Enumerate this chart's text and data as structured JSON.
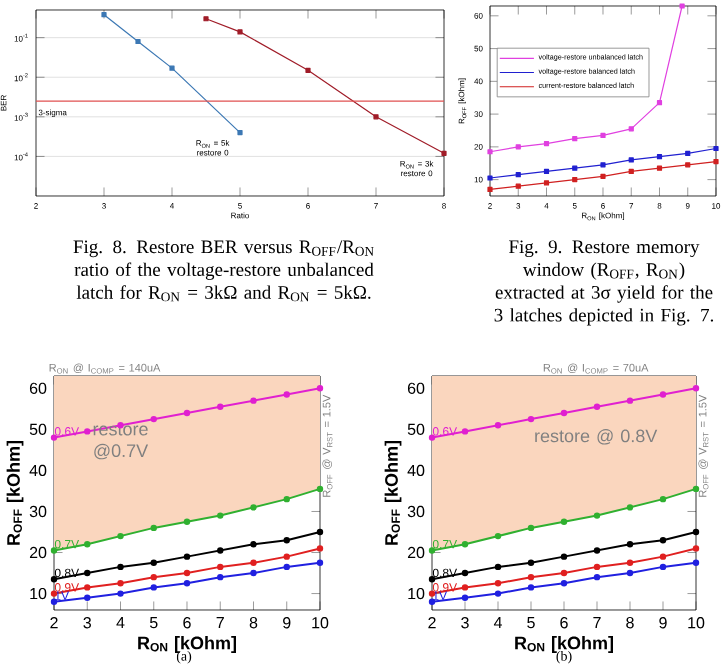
{
  "chart_data": [
    {
      "type": "line",
      "log": "y",
      "xlabel": "Ratio",
      "ylabel": "BER",
      "xlim": [
        2,
        8
      ],
      "xticks": [
        2,
        3,
        4,
        5,
        6,
        7,
        8
      ],
      "ylim": [
        1e-05,
        0.5
      ],
      "yticks": [
        {
          "value": 0.1,
          "label": "10$^{-1}$"
        },
        {
          "value": 0.01,
          "label": "10$^{-2}$"
        },
        {
          "value": 0.001,
          "label": "10$^{-3}$"
        },
        {
          "value": 0.0001,
          "label": "10$^{-4}$"
        }
      ],
      "grid": "y",
      "marker": "square",
      "series": [
        {
          "name": "R$_{ON}$ = 5k restore 0",
          "color": "#3c78b4",
          "x": [
            3,
            3.5,
            4,
            5
          ],
          "values": [
            0.38,
            0.08,
            0.017,
            0.0004
          ]
        },
        {
          "name": "R$_{ON}$ = 3k restore 0",
          "color": "#a01c28",
          "x": [
            4.5,
            5,
            6,
            7,
            8
          ],
          "values": [
            0.3,
            0.14,
            0.015,
            0.001,
            0.00012
          ]
        }
      ],
      "ref_lines": [
        {
          "axis": "y",
          "value": 0.0025,
          "label": "3-sigma",
          "color": "#e05050"
        }
      ],
      "annotations": [
        "Fig. 8. Restore BER versus R$_{OFF}$/R$_{ON}$ ratio of the voltage-restore unbalanced latch for R$_{ON}$ = 3kΩ and R$_{ON}$ = 5kΩ."
      ]
    },
    {
      "type": "line",
      "xlabel": "R$_{ON}$ [kOhm]",
      "ylabel": "R$_{OFF}$ [kOhm]",
      "xlim": [
        2,
        10
      ],
      "xticks": [
        2,
        3,
        4,
        5,
        6,
        7,
        8,
        9,
        10
      ],
      "ylim": [
        5,
        63
      ],
      "yticks": [
        10,
        20,
        30,
        40,
        50,
        60
      ],
      "marker": "square",
      "legend": "top left",
      "series": [
        {
          "name": "voltage-restore unbalanced latch",
          "color": "#e040e0",
          "x": [
            2,
            3,
            4,
            5,
            6,
            7,
            8,
            8.8
          ],
          "values": [
            18.5,
            20,
            21,
            22.5,
            23.5,
            25.5,
            33.5,
            63
          ]
        },
        {
          "name": "voltage-restore balanced latch",
          "color": "#2020d0",
          "x": [
            2,
            3,
            4,
            5,
            6,
            7,
            8,
            9,
            10
          ],
          "values": [
            10.5,
            11.5,
            12.5,
            13.5,
            14.5,
            16,
            17,
            18,
            19.5
          ]
        },
        {
          "name": "current-restore balanced latch",
          "color": "#d02020",
          "x": [
            2,
            3,
            4,
            5,
            6,
            7,
            8,
            9,
            10
          ],
          "values": [
            7,
            8,
            9,
            10,
            11,
            12.5,
            13.5,
            14.5,
            15.5
          ]
        }
      ],
      "annotations": [
        "Fig. 9. Restore memory window (R$_{OFF}$, R$_{ON}$) extracted at 3σ yield for the 3 latches depicted in Fig. 7."
      ]
    },
    {
      "type": "line",
      "xlabel": "R$_{ON}$ [kOhm]",
      "ylabel": "R$_{OFF}$ [kOhm]",
      "xlim": [
        2,
        10
      ],
      "xticks": [
        2,
        3,
        4,
        5,
        6,
        7,
        8,
        9,
        10
      ],
      "ylim": [
        6,
        63
      ],
      "yticks": [
        10,
        20,
        30,
        40,
        50,
        60
      ],
      "marker": "circle",
      "x": [
        2,
        3,
        4,
        5,
        6,
        7,
        8,
        9,
        10
      ],
      "series": [
        {
          "name": "0.6V",
          "color": "#e020d0",
          "values": [
            48,
            49.5,
            51,
            52.5,
            54,
            55.5,
            57,
            58.5,
            60
          ]
        },
        {
          "name": "0.7V",
          "color": "#30b030",
          "values": [
            20.5,
            22,
            24,
            26,
            27.5,
            29,
            31,
            33,
            35.5
          ],
          "lower": [
            20.5,
            22,
            24,
            26,
            27.5,
            29,
            31,
            33,
            35.5
          ],
          "upper": [
            63,
            63,
            63,
            63,
            63,
            63,
            63,
            63,
            63
          ]
        },
        {
          "name": "0.8V",
          "color": "#000000",
          "values": [
            13.5,
            15,
            16.5,
            17.5,
            19,
            20.5,
            22,
            23,
            25
          ]
        },
        {
          "name": "0.9V",
          "color": "#e02020",
          "values": [
            10,
            11.5,
            12.5,
            14,
            15,
            16.5,
            17.5,
            19,
            21
          ]
        },
        {
          "name": "1V",
          "color": "#2020e0",
          "values": [
            8,
            9,
            10,
            11.5,
            12.5,
            14,
            15,
            16.5,
            17.5
          ]
        }
      ],
      "annotations": [
        "restore @0.7V",
        "R$_{ON}$ @ I$_{COMP}$ = 140uA",
        "R$_{OFF}$ @ V$_{RST}$ = 1.5V",
        "(a)"
      ]
    },
    {
      "type": "line",
      "xlabel": "R$_{ON}$ [kOhm]",
      "ylabel": "R$_{OFF}$ [kOhm]",
      "xlim": [
        2,
        10
      ],
      "xticks": [
        2,
        3,
        4,
        5,
        6,
        7,
        8,
        9,
        10
      ],
      "ylim": [
        6,
        63
      ],
      "yticks": [
        10,
        20,
        30,
        40,
        50,
        60
      ],
      "marker": "circle",
      "x": [
        2,
        3,
        4,
        5,
        6,
        7,
        8,
        9,
        10
      ],
      "series": [
        {
          "name": "0.6V",
          "color": "#e020d0",
          "values": [
            48,
            49.5,
            51,
            52.5,
            54,
            55.5,
            57,
            58.5,
            60
          ]
        },
        {
          "name": "0.7V",
          "color": "#30b030",
          "values": [
            20.5,
            22,
            24,
            26,
            27.5,
            29,
            31,
            33,
            35.5
          ],
          "lower": [
            20.5,
            22,
            24,
            26,
            27.5,
            29,
            31,
            33,
            35.5
          ],
          "upper": [
            63,
            63,
            63,
            63,
            63,
            63,
            63,
            63,
            63
          ]
        },
        {
          "name": "0.8V",
          "color": "#000000",
          "values": [
            13.5,
            15,
            16.5,
            17.5,
            19,
            20.5,
            22,
            23,
            25
          ]
        },
        {
          "name": "0.9V",
          "color": "#e02020",
          "values": [
            10,
            11.5,
            12.5,
            14,
            15,
            16.5,
            17.5,
            19,
            21
          ]
        },
        {
          "name": "1V",
          "color": "#2020e0",
          "values": [
            8,
            9,
            10,
            11.5,
            12.5,
            14,
            15,
            16.5,
            17.5
          ]
        }
      ],
      "annotations": [
        "restore @ 0.8V",
        "R$_{ON}$ @ I$_{COMP}$ = 70uA",
        "R$_{OFF}$ @ V$_{RST}$ = 1.5V",
        "(b)"
      ]
    }
  ]
}
